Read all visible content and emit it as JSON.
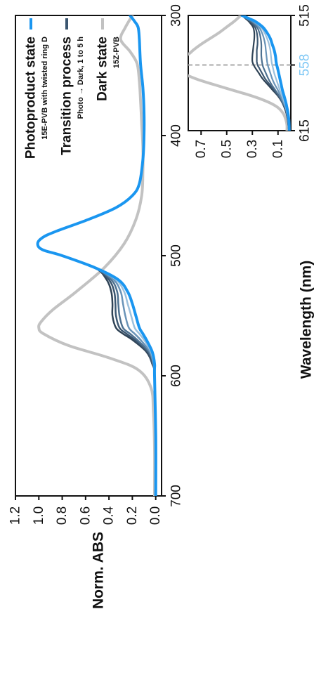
{
  "chart_data": [
    {
      "type": "line",
      "orientation": "rotated-90",
      "xlabel": "Wavelength (nm)",
      "ylabel": "Norm. ABS",
      "xlim": [
        300,
        700
      ],
      "ylim": [
        -0.05,
        1.2
      ],
      "x_ticks": [
        "300",
        "400",
        "500",
        "600",
        "700"
      ],
      "y_ticks": [
        "0.0",
        "0.2",
        "0.4",
        "0.6",
        "0.8",
        "1.0",
        "1.2"
      ],
      "legend": {
        "placement": "top-left",
        "entries": [
          {
            "label": "Photoproduct state",
            "sublabel": "15E-PVB with twisted ring D",
            "color": "#1a96f0"
          },
          {
            "label": "Transition process",
            "sublabel": "Photo → Dark, 1 to 5 h",
            "color": "#3b5670"
          },
          {
            "label": "Dark state",
            "sublabel": "15Z-PVB",
            "color": "#c2c2c2"
          }
        ]
      },
      "series": [
        {
          "name": "Dark state",
          "color": "#c2c2c2",
          "width": 4,
          "x": [
            300,
            310,
            320,
            330,
            340,
            355,
            370,
            390,
            410,
            430,
            450,
            470,
            490,
            510,
            530,
            545,
            555,
            560,
            565,
            575,
            585,
            595,
            610,
            630,
            660,
            700
          ],
          "y": [
            0.2,
            0.26,
            0.3,
            0.22,
            0.16,
            0.14,
            0.13,
            0.12,
            0.11,
            0.11,
            0.12,
            0.17,
            0.27,
            0.44,
            0.68,
            0.88,
            0.98,
            1.0,
            0.96,
            0.74,
            0.4,
            0.15,
            0.04,
            0.02,
            0.01,
            0.01
          ]
        },
        {
          "name": "Transition 5 h",
          "color": "#2f4356",
          "width": 2.5,
          "x": [
            300,
            305,
            310,
            320,
            340,
            360,
            380,
            400,
            420,
            440,
            450,
            460,
            470,
            480,
            485,
            490,
            495,
            500,
            510,
            520,
            530,
            540,
            550,
            560,
            565,
            570,
            580,
            590,
            600,
            650,
            700
          ],
          "y": [
            0.22,
            0.18,
            0.15,
            0.14,
            0.13,
            0.11,
            0.1,
            0.1,
            0.11,
            0.14,
            0.2,
            0.34,
            0.58,
            0.86,
            0.97,
            1.01,
            0.97,
            0.8,
            0.52,
            0.42,
            0.38,
            0.37,
            0.37,
            0.34,
            0.28,
            0.2,
            0.08,
            0.03,
            0.01,
            0.0,
            0.0
          ]
        },
        {
          "name": "Transition 4 h",
          "color": "#3b5670",
          "width": 2.5,
          "x": [
            300,
            305,
            310,
            320,
            340,
            360,
            380,
            400,
            420,
            440,
            450,
            460,
            470,
            480,
            485,
            490,
            495,
            500,
            510,
            520,
            530,
            540,
            550,
            560,
            565,
            570,
            580,
            590,
            600,
            650,
            700
          ],
          "y": [
            0.22,
            0.18,
            0.15,
            0.14,
            0.13,
            0.11,
            0.1,
            0.1,
            0.11,
            0.14,
            0.2,
            0.34,
            0.58,
            0.86,
            0.97,
            1.01,
            0.97,
            0.8,
            0.52,
            0.4,
            0.355,
            0.345,
            0.34,
            0.31,
            0.25,
            0.18,
            0.07,
            0.03,
            0.01,
            0.0,
            0.0
          ]
        },
        {
          "name": "Transition 3 h",
          "color": "#4e7190",
          "width": 2.5,
          "x": [
            300,
            305,
            310,
            320,
            340,
            360,
            380,
            400,
            420,
            440,
            450,
            460,
            470,
            480,
            485,
            490,
            495,
            500,
            510,
            520,
            530,
            540,
            550,
            560,
            565,
            570,
            580,
            590,
            600,
            650,
            700
          ],
          "y": [
            0.22,
            0.18,
            0.15,
            0.14,
            0.13,
            0.11,
            0.1,
            0.1,
            0.11,
            0.14,
            0.2,
            0.34,
            0.58,
            0.86,
            0.97,
            1.01,
            0.97,
            0.8,
            0.52,
            0.38,
            0.33,
            0.32,
            0.31,
            0.28,
            0.22,
            0.16,
            0.06,
            0.02,
            0.01,
            0.0,
            0.0
          ]
        },
        {
          "name": "Transition 2 h",
          "color": "#6a94b8",
          "width": 2.5,
          "x": [
            300,
            305,
            310,
            320,
            340,
            360,
            380,
            400,
            420,
            440,
            450,
            460,
            470,
            480,
            485,
            490,
            495,
            500,
            510,
            520,
            530,
            540,
            550,
            560,
            565,
            570,
            580,
            590,
            600,
            650,
            700
          ],
          "y": [
            0.22,
            0.18,
            0.15,
            0.14,
            0.13,
            0.11,
            0.1,
            0.1,
            0.11,
            0.14,
            0.2,
            0.34,
            0.58,
            0.86,
            0.97,
            1.01,
            0.97,
            0.8,
            0.52,
            0.36,
            0.3,
            0.28,
            0.26,
            0.23,
            0.18,
            0.13,
            0.05,
            0.02,
            0.01,
            0.0,
            0.0
          ]
        },
        {
          "name": "Transition 1 h",
          "color": "#9cc0dc",
          "width": 2.5,
          "x": [
            300,
            305,
            310,
            320,
            340,
            360,
            380,
            400,
            420,
            440,
            450,
            460,
            470,
            480,
            485,
            490,
            495,
            500,
            510,
            520,
            530,
            540,
            550,
            560,
            565,
            570,
            580,
            590,
            600,
            650,
            700
          ],
          "y": [
            0.22,
            0.18,
            0.15,
            0.14,
            0.13,
            0.11,
            0.1,
            0.1,
            0.11,
            0.14,
            0.2,
            0.34,
            0.58,
            0.86,
            0.97,
            1.01,
            0.97,
            0.8,
            0.52,
            0.34,
            0.27,
            0.24,
            0.21,
            0.18,
            0.14,
            0.1,
            0.04,
            0.015,
            0.01,
            0.0,
            0.0
          ]
        },
        {
          "name": "Photoproduct state",
          "color": "#1a96f0",
          "width": 4,
          "x": [
            300,
            305,
            310,
            320,
            340,
            360,
            380,
            400,
            420,
            440,
            450,
            460,
            470,
            480,
            485,
            490,
            495,
            500,
            510,
            520,
            530,
            540,
            550,
            560,
            565,
            570,
            580,
            590,
            600,
            650,
            700
          ],
          "y": [
            0.22,
            0.18,
            0.15,
            0.14,
            0.13,
            0.11,
            0.1,
            0.1,
            0.11,
            0.14,
            0.2,
            0.34,
            0.58,
            0.86,
            0.97,
            1.01,
            0.97,
            0.8,
            0.52,
            0.32,
            0.24,
            0.2,
            0.17,
            0.14,
            0.11,
            0.08,
            0.03,
            0.01,
            0.01,
            0.0,
            0.0
          ]
        }
      ]
    },
    {
      "type": "line",
      "orientation": "rotated-90",
      "xlim": [
        515,
        615
      ],
      "ylim": [
        0,
        0.8
      ],
      "x_ticks": [
        "515",
        "558",
        "615"
      ],
      "y_ticks": [
        "0.1",
        "0.3",
        "0.5",
        "0.7"
      ],
      "reference_line": {
        "x": 558,
        "label": "558",
        "color": "#a9a9a9",
        "label_color": "#7fc8f5"
      },
      "series": [
        {
          "name": "Dark state",
          "color": "#c2c2c2",
          "width": 4,
          "x": [
            515,
            520,
            525,
            530,
            535,
            540,
            545,
            548,
            550,
            555,
            558,
            560,
            565,
            570,
            575,
            580,
            585,
            590,
            595,
            600,
            605,
            610,
            615
          ],
          "y": [
            0.39,
            0.44,
            0.5,
            0.56,
            0.63,
            0.7,
            0.76,
            0.79,
            0.82,
            0.86,
            0.88,
            0.87,
            0.84,
            0.74,
            0.6,
            0.45,
            0.3,
            0.18,
            0.1,
            0.06,
            0.04,
            0.03,
            0.03
          ]
        },
        {
          "name": "Transition 5 h",
          "color": "#2f4356",
          "width": 2.2,
          "x": [
            515,
            518,
            520,
            525,
            530,
            535,
            540,
            545,
            550,
            555,
            558,
            560,
            565,
            570,
            575,
            580,
            585,
            590,
            595,
            600,
            605,
            610,
            615
          ],
          "y": [
            0.38,
            0.35,
            0.33,
            0.295,
            0.285,
            0.285,
            0.29,
            0.295,
            0.3,
            0.3,
            0.29,
            0.28,
            0.25,
            0.22,
            0.18,
            0.14,
            0.1,
            0.07,
            0.05,
            0.035,
            0.025,
            0.02,
            0.015
          ]
        },
        {
          "name": "Transition 4 h",
          "color": "#3b5670",
          "width": 2.2,
          "x": [
            515,
            518,
            520,
            525,
            530,
            535,
            540,
            545,
            550,
            555,
            558,
            560,
            565,
            570,
            575,
            580,
            585,
            590,
            595,
            600,
            605,
            610,
            615
          ],
          "y": [
            0.38,
            0.345,
            0.32,
            0.28,
            0.265,
            0.26,
            0.26,
            0.265,
            0.265,
            0.265,
            0.26,
            0.25,
            0.225,
            0.2,
            0.165,
            0.13,
            0.095,
            0.07,
            0.05,
            0.035,
            0.025,
            0.02,
            0.015
          ]
        },
        {
          "name": "Transition 3 h",
          "color": "#4e7190",
          "width": 2.2,
          "x": [
            515,
            518,
            520,
            525,
            530,
            535,
            540,
            545,
            550,
            555,
            558,
            560,
            565,
            570,
            575,
            580,
            585,
            590,
            595,
            600,
            605,
            610,
            615
          ],
          "y": [
            0.38,
            0.34,
            0.31,
            0.265,
            0.245,
            0.235,
            0.23,
            0.23,
            0.23,
            0.225,
            0.22,
            0.215,
            0.195,
            0.175,
            0.15,
            0.12,
            0.09,
            0.065,
            0.045,
            0.03,
            0.022,
            0.018,
            0.015
          ]
        },
        {
          "name": "Transition 2 h",
          "color": "#6a94b8",
          "width": 2.2,
          "x": [
            515,
            518,
            520,
            525,
            530,
            535,
            540,
            545,
            550,
            555,
            558,
            560,
            565,
            570,
            575,
            580,
            585,
            590,
            595,
            600,
            605,
            610,
            615
          ],
          "y": [
            0.38,
            0.335,
            0.3,
            0.25,
            0.225,
            0.21,
            0.2,
            0.195,
            0.19,
            0.185,
            0.18,
            0.175,
            0.16,
            0.145,
            0.125,
            0.1,
            0.08,
            0.06,
            0.04,
            0.03,
            0.022,
            0.018,
            0.015
          ]
        },
        {
          "name": "Transition 1 h",
          "color": "#9cc0dc",
          "width": 2.2,
          "x": [
            515,
            518,
            520,
            525,
            530,
            535,
            540,
            545,
            550,
            555,
            558,
            560,
            565,
            570,
            575,
            580,
            585,
            590,
            595,
            600,
            605,
            610,
            615
          ],
          "y": [
            0.38,
            0.33,
            0.29,
            0.235,
            0.205,
            0.185,
            0.17,
            0.16,
            0.155,
            0.15,
            0.145,
            0.14,
            0.13,
            0.115,
            0.1,
            0.085,
            0.068,
            0.052,
            0.038,
            0.028,
            0.02,
            0.016,
            0.014
          ]
        },
        {
          "name": "Photoproduct state",
          "color": "#1a96f0",
          "width": 4,
          "x": [
            515,
            518,
            520,
            525,
            530,
            535,
            540,
            545,
            550,
            555,
            558,
            560,
            565,
            570,
            575,
            580,
            585,
            590,
            595,
            600,
            605,
            610,
            615
          ],
          "y": [
            0.38,
            0.32,
            0.28,
            0.22,
            0.185,
            0.16,
            0.145,
            0.13,
            0.12,
            0.115,
            0.11,
            0.105,
            0.095,
            0.085,
            0.075,
            0.065,
            0.052,
            0.04,
            0.03,
            0.022,
            0.016,
            0.013,
            0.012
          ]
        }
      ]
    }
  ]
}
